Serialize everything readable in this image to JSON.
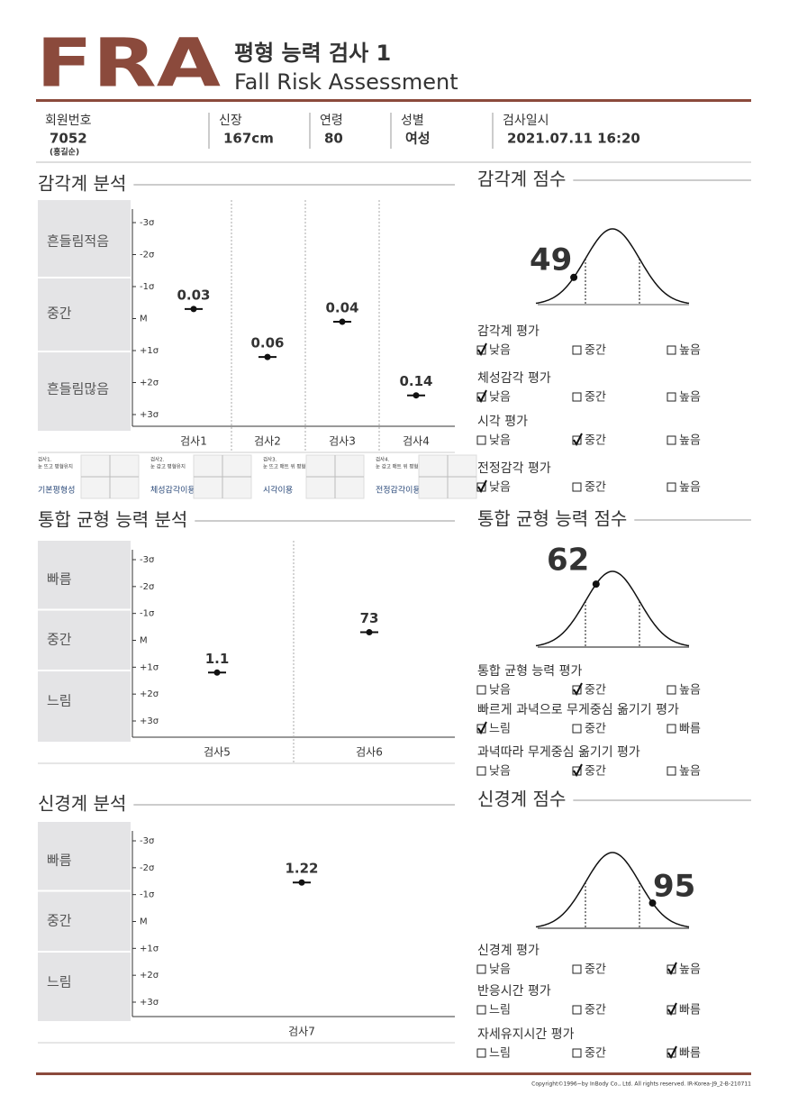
{
  "header": {
    "logo": "FRA",
    "title": "평형 능력 검사  1",
    "subtitle": "Fall Risk Assessment"
  },
  "info": [
    {
      "label": "회원번호",
      "value": "7052",
      "note": "(홍길순)"
    },
    {
      "label": "신장",
      "value": "167cm"
    },
    {
      "label": "연령",
      "value": "80"
    },
    {
      "label": "성별",
      "value": "여성"
    },
    {
      "label": "검사일시",
      "value": "2021.07.11 16:20"
    }
  ],
  "sections": [
    {
      "analysis": {
        "title": "감각계 분석",
        "bands": [
          "흔들림적음",
          "중간",
          "흔들림많음"
        ],
        "yticks": [
          {
            "value": -3,
            "label": "-3σ"
          },
          {
            "value": -2,
            "label": "-2σ"
          },
          {
            "value": -1,
            "label": "-1σ"
          },
          {
            "value": 0,
            "label": "M"
          },
          {
            "value": 1,
            "label": "+1σ"
          },
          {
            "value": 2,
            "label": "+2σ"
          },
          {
            "value": 3,
            "label": "+3σ"
          }
        ],
        "tests": [
          {
            "name": "검사1",
            "value": 0.03,
            "sigma": -0.3
          },
          {
            "name": "검사2",
            "value": 0.06,
            "sigma": 1.2
          },
          {
            "name": "검사3",
            "value": 0.04,
            "sigma": 0.1
          },
          {
            "name": "검사4",
            "value": 0.14,
            "sigma": 2.4
          }
        ],
        "guides": [
          {
            "step": "검사1.",
            "desc": "눈 뜨고 평형유지",
            "name": "기본평형성"
          },
          {
            "step": "검사2.",
            "desc": "눈 감고 평형유지",
            "name": "체성감각이용"
          },
          {
            "step": "검사3.",
            "desc": "눈 뜨고 매트 위 평형유지",
            "name": "시각이용"
          },
          {
            "step": "검사4.",
            "desc": "눈 감고 매트 위 평형유지",
            "name": "전정감각이용"
          }
        ]
      },
      "score": {
        "title": "감각계 점수",
        "score": 49,
        "evaluations": [
          {
            "title": "감각계 평가",
            "options": [
              "낮음",
              "중간",
              "높음"
            ],
            "checked": 0
          },
          {
            "title": "체성감각 평가",
            "options": [
              "낮음",
              "중간",
              "높음"
            ],
            "checked": 0
          },
          {
            "title": "시각 평가",
            "options": [
              "낮음",
              "중간",
              "높음"
            ],
            "checked": 1
          },
          {
            "title": "전정감각 평가",
            "options": [
              "낮음",
              "중간",
              "높음"
            ],
            "checked": 0
          }
        ]
      }
    },
    {
      "analysis": {
        "title": "통합 균형 능력 분석",
        "bands": [
          "빠름",
          "중간",
          "느림"
        ],
        "yticks": [
          {
            "value": -3,
            "label": "-3σ"
          },
          {
            "value": -2,
            "label": "-2σ"
          },
          {
            "value": -1,
            "label": "-1σ"
          },
          {
            "value": 0,
            "label": "M"
          },
          {
            "value": 1,
            "label": "+1σ"
          },
          {
            "value": 2,
            "label": "+2σ"
          },
          {
            "value": 3,
            "label": "+3σ"
          }
        ],
        "tests": [
          {
            "name": "검사5",
            "value": 1.1,
            "sigma": 1.2
          },
          {
            "name": "검사6",
            "value": 73,
            "sigma": -0.3
          }
        ]
      },
      "score": {
        "title": "통합 균형 능력 점수",
        "score": 62,
        "evaluations": [
          {
            "title": "통합 균형 능력 평가",
            "options": [
              "낮음",
              "중간",
              "높음"
            ],
            "checked": 1
          },
          {
            "title": "빠르게 과녁으로 무게중심 옮기기 평가",
            "options": [
              "느림",
              "중간",
              "빠름"
            ],
            "checked": 0
          },
          {
            "title": "과녁따라 무게중심 옮기기 평가",
            "options": [
              "낮음",
              "중간",
              "높음"
            ],
            "checked": 1
          }
        ]
      }
    },
    {
      "analysis": {
        "title": "신경계 분석",
        "bands": [
          "빠름",
          "중간",
          "느림"
        ],
        "yticks": [
          {
            "value": -3,
            "label": "-3σ"
          },
          {
            "value": -2,
            "label": "-2σ"
          },
          {
            "value": -1,
            "label": "-1σ"
          },
          {
            "value": 0,
            "label": "M"
          },
          {
            "value": 1,
            "label": "+1σ"
          },
          {
            "value": 2,
            "label": "+2σ"
          },
          {
            "value": 3,
            "label": "+3σ"
          }
        ],
        "tests": [
          {
            "name": "검사7",
            "value": 1.22,
            "sigma": -1.45
          }
        ]
      },
      "score": {
        "title": "신경계 점수",
        "score": 95,
        "evaluations": [
          {
            "title": "신경계 평가",
            "options": [
              "낮음",
              "중간",
              "높음"
            ],
            "checked": 2
          },
          {
            "title": "반응시간 평가",
            "options": [
              "느림",
              "중간",
              "빠름"
            ],
            "checked": 2
          },
          {
            "title": "자세유지시간 평가",
            "options": [
              "느림",
              "중간",
              "빠름"
            ],
            "checked": 2
          }
        ]
      }
    }
  ],
  "footer": "Copyright©1996~by InBody Co., Ltd. All rights reserved.  IR-Korea-J9_2-B-210711"
}
